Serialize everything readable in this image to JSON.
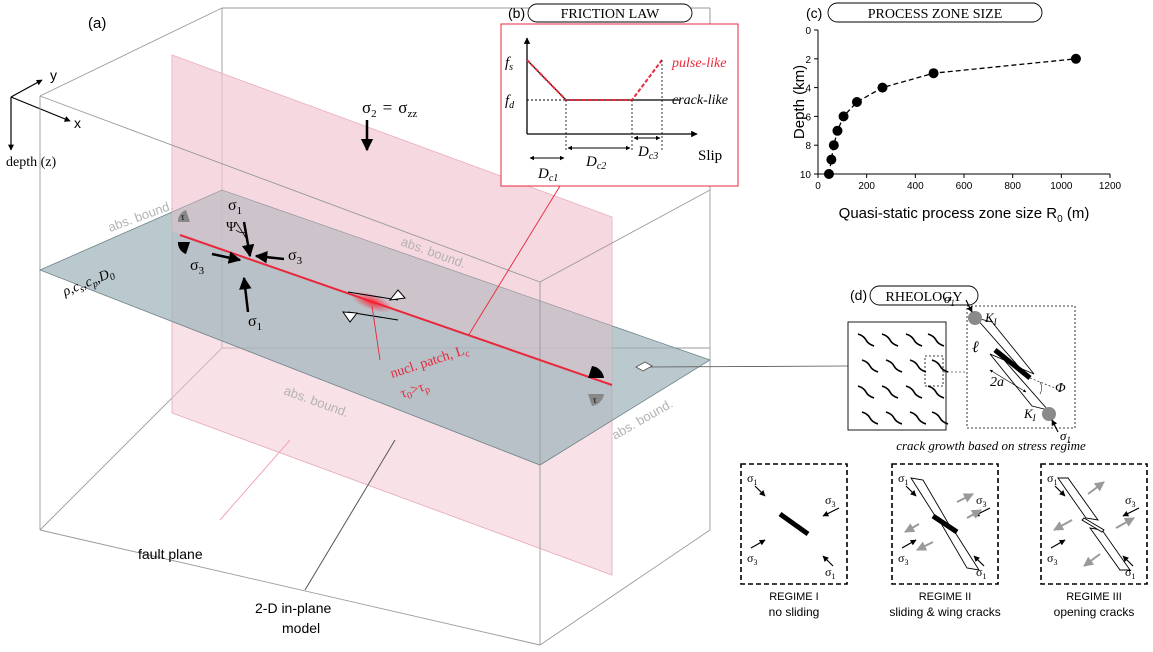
{
  "panel_a": {
    "label": "(a)",
    "axis_y": "y",
    "axis_x": "x",
    "axis_depth": "depth (z)",
    "sigma2_lhs": "σ",
    "sigma2_sub": "2",
    "sigma2_eq": "=",
    "sigma2_rhs": "σ",
    "sigma2_rhs_sub": "zz",
    "abs_bound": "abs. bound.",
    "material_params": "ρ,c",
    "material_params_s": "s",
    "material_params_p": ",c",
    "material_params_p_sub": "p",
    "material_params_d": ",D",
    "material_params_d_sub": "0",
    "sigma": "σ",
    "sub_1": "1",
    "sub_3": "3",
    "psi": "Ψ",
    "c_label": "c",
    "tau_label": "τ",
    "nucl_line1": "nucl. patch, L",
    "nucl_line1_sub": "c",
    "nucl_line2": "τ",
    "nucl_line2_sub0": "0",
    "nucl_line2_gt": ">τ",
    "nucl_line2_subp": "p",
    "fault_plane": "fault plane",
    "model_line1": "2-D in-plane",
    "model_line2": "model"
  },
  "panel_b": {
    "label": "(b)",
    "title": "FRICTION LAW",
    "fs": "f",
    "fs_sub": "s",
    "fd": "f",
    "fd_sub": "d",
    "pulse_like": "pulse-like",
    "crack_like": "crack-like",
    "slip": "Slip",
    "dc": "D",
    "dc1_sub": "c1",
    "dc2_sub": "c2",
    "dc3_sub": "c3"
  },
  "panel_c": {
    "label": "(c)",
    "title": "PROCESS ZONE SIZE",
    "ylabel": "Depth (km)",
    "xlabel": "Quasi-static process zone size R",
    "xlabel_sub": "0",
    "xlabel_unit": " (m)"
  },
  "panel_d": {
    "label": "(d)",
    "title": "RHEOLOGY",
    "crack_growth": "crack growth based on stress regime",
    "sigma": "σ",
    "sub_1": "1",
    "sub_3": "3",
    "ki": "K",
    "ki_sub": "I",
    "ell": "ℓ",
    "two_a": "2a",
    "phi": "Φ",
    "regimes": [
      {
        "name": "REGIME I",
        "desc": "no sliding"
      },
      {
        "name": "REGIME II",
        "desc": "sliding & wing cracks"
      },
      {
        "name": "REGIME III",
        "desc": "opening cracks"
      }
    ]
  },
  "colors": {
    "fault_plane": "#f3c9d3",
    "model_plane": "#9fb4bb",
    "fault_line": "#e8283c",
    "gray_text": "#b3b3b3"
  },
  "chart_data": {
    "type": "line",
    "title": "PROCESS ZONE SIZE",
    "xlabel": "Quasi-static process zone size R0 (m)",
    "ylabel": "Depth (km)",
    "xlim": [
      0,
      1200
    ],
    "ylim": [
      10,
      0
    ],
    "x_ticks": [
      0,
      200,
      400,
      600,
      800,
      1000,
      1200
    ],
    "y_ticks": [
      0,
      2,
      4,
      6,
      8,
      10
    ],
    "series": [
      {
        "x": [
          45,
          55,
          65,
          80,
          105,
          160,
          265,
          475,
          1060
        ],
        "y": [
          10,
          9,
          8,
          7,
          6,
          5,
          4,
          3,
          2
        ]
      }
    ],
    "marker": "circle",
    "line_style": "dashed"
  }
}
